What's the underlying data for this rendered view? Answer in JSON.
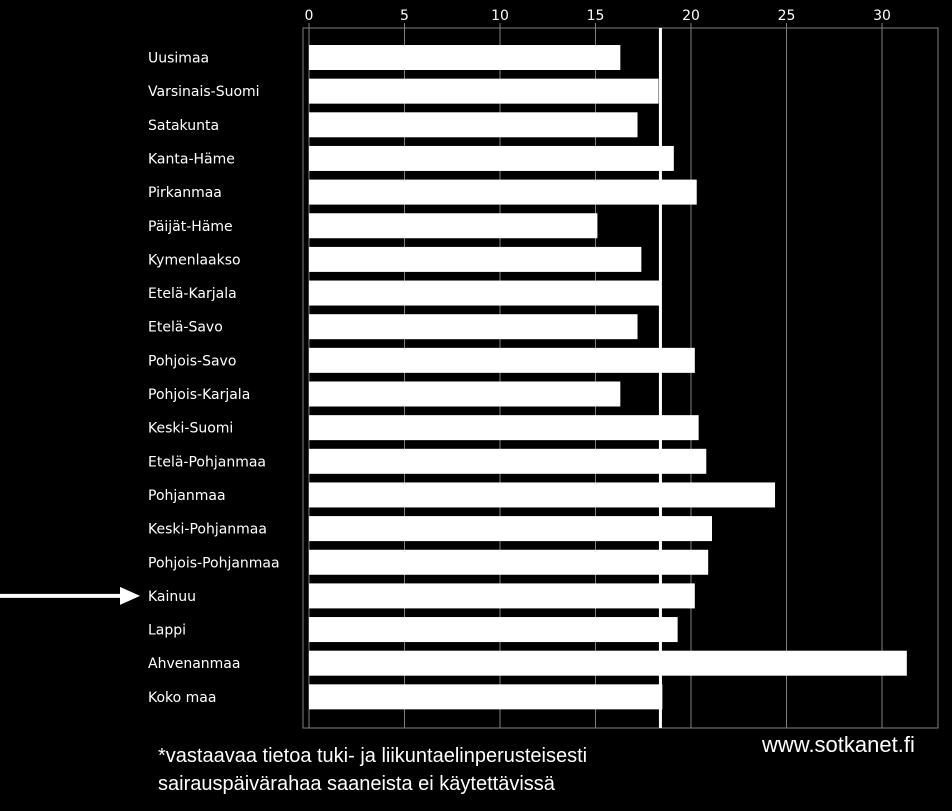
{
  "chart_data": {
    "type": "bar",
    "orientation": "horizontal",
    "categories": [
      "Uusimaa",
      "Varsinais-Suomi",
      "Satakunta",
      "Kanta-Häme",
      "Pirkanmaa",
      "Päijät-Häme",
      "Kymenlaakso",
      "Etelä-Karjala",
      "Etelä-Savo",
      "Pohjois-Savo",
      "Pohjois-Karjala",
      "Keski-Suomi",
      "Etelä-Pohjanmaa",
      "Pohjanmaa",
      "Keski-Pohjanmaa",
      "Pohjois-Pohjanmaa",
      "Kainuu",
      "Lappi",
      "Ahvenanmaa",
      "Koko maa"
    ],
    "values": [
      16.3,
      18.3,
      17.2,
      19.1,
      20.3,
      15.1,
      17.4,
      18.4,
      17.2,
      20.2,
      16.3,
      20.4,
      20.8,
      24.4,
      21.1,
      20.9,
      20.2,
      19.3,
      31.3,
      18.5
    ],
    "reference_line": 18.4,
    "highlighted_category": "Kainuu",
    "xticks": [
      0,
      5,
      10,
      15,
      20,
      25,
      30
    ],
    "xlim": [
      0,
      32.5
    ],
    "title": "",
    "xlabel": "",
    "ylabel": "",
    "grid": true,
    "colors": {
      "background": "#000000",
      "bar": "#ffffff",
      "grid": "#808080",
      "text": "#ffffff"
    }
  },
  "footnote": {
    "line1": "*vastaavaa tietoa tuki- ja liikuntaelinperusteisesti",
    "line2": "sairauspäivärahaa saaneista ei käytettävissä"
  },
  "source": "www.sotkanet.fi"
}
